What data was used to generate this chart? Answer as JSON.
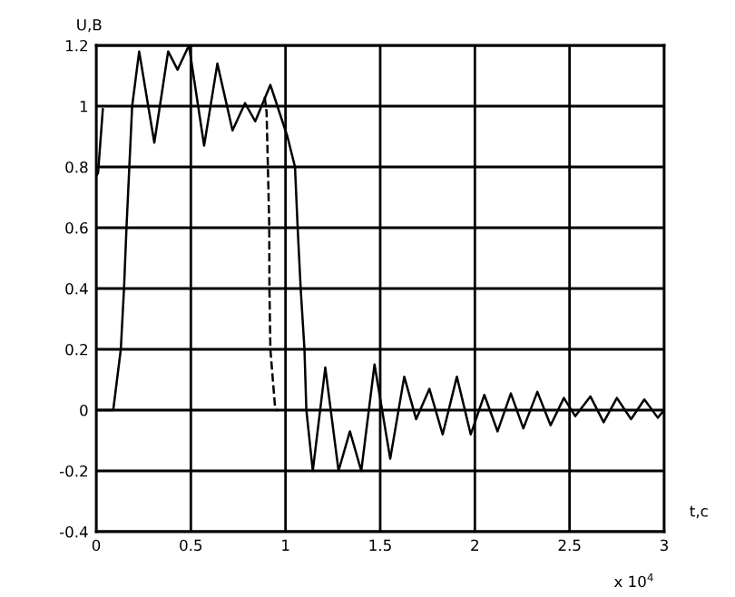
{
  "chart_data": {
    "type": "line",
    "xlabel": "t,c",
    "ylabel": "U,B",
    "annotations": [
      "x 10$^{4}$"
    ],
    "series": [
      {
        "color": "#000000",
        "line_style": "solid",
        "x": [
          0,
          0.09,
          0.13,
          0.147,
          0.16,
          0.19,
          0.227,
          0.307,
          0.38,
          0.43,
          0.49,
          0.57,
          0.64,
          0.72,
          0.786,
          0.84,
          0.92,
          1.01,
          1.05,
          1.064,
          1.08,
          1.1,
          1.11,
          1.144,
          1.21,
          1.28,
          1.34,
          1.4,
          1.47,
          1.553,
          1.627,
          1.69,
          1.76,
          1.83,
          1.905,
          1.978,
          2.05,
          2.12,
          2.19,
          2.256,
          2.33,
          2.4,
          2.47,
          2.53,
          2.61,
          2.68,
          2.75,
          2.825,
          2.895,
          2.966,
          3.0
        ],
        "values": [
          0,
          0,
          0.2,
          0.4,
          0.6,
          1.0,
          1.18,
          0.88,
          1.18,
          1.12,
          1.2,
          0.87,
          1.14,
          0.92,
          1.01,
          0.95,
          1.07,
          0.9,
          0.8,
          0.6,
          0.4,
          0.2,
          0,
          -0.2,
          0.14,
          -0.2,
          -0.07,
          -0.2,
          0.15,
          -0.16,
          0.11,
          -0.03,
          0.07,
          -0.08,
          0.11,
          -0.08,
          0.05,
          -0.07,
          0.055,
          -0.06,
          0.06,
          -0.05,
          0.04,
          -0.02,
          0.045,
          -0.04,
          0.04,
          -0.03,
          0.035,
          -0.025,
          0
        ]
      },
      {
        "color": "#000000",
        "line_style": "solid",
        "x": [
          0,
          0.01,
          0.035
        ],
        "values": [
          0.77,
          0.78,
          0.99
        ]
      },
      {
        "color": "#000000",
        "line_style": "dashed",
        "x": [
          0.89,
          0.9,
          0.914,
          0.915,
          0.92,
          0.946,
          0.96
        ],
        "values": [
          1.03,
          0.98,
          0.61,
          0.4,
          0.2,
          0,
          0
        ]
      }
    ],
    "xlim": [
      0,
      3
    ],
    "xticks": [
      0,
      0.5,
      1,
      1.5,
      2,
      2.5,
      3
    ],
    "ylim": [
      -0.4,
      1.2
    ],
    "yticks": [
      -0.4,
      -0.2,
      0,
      0.2,
      0.4,
      0.6,
      0.8,
      1,
      1.2
    ],
    "grid": true,
    "marker": "none"
  }
}
